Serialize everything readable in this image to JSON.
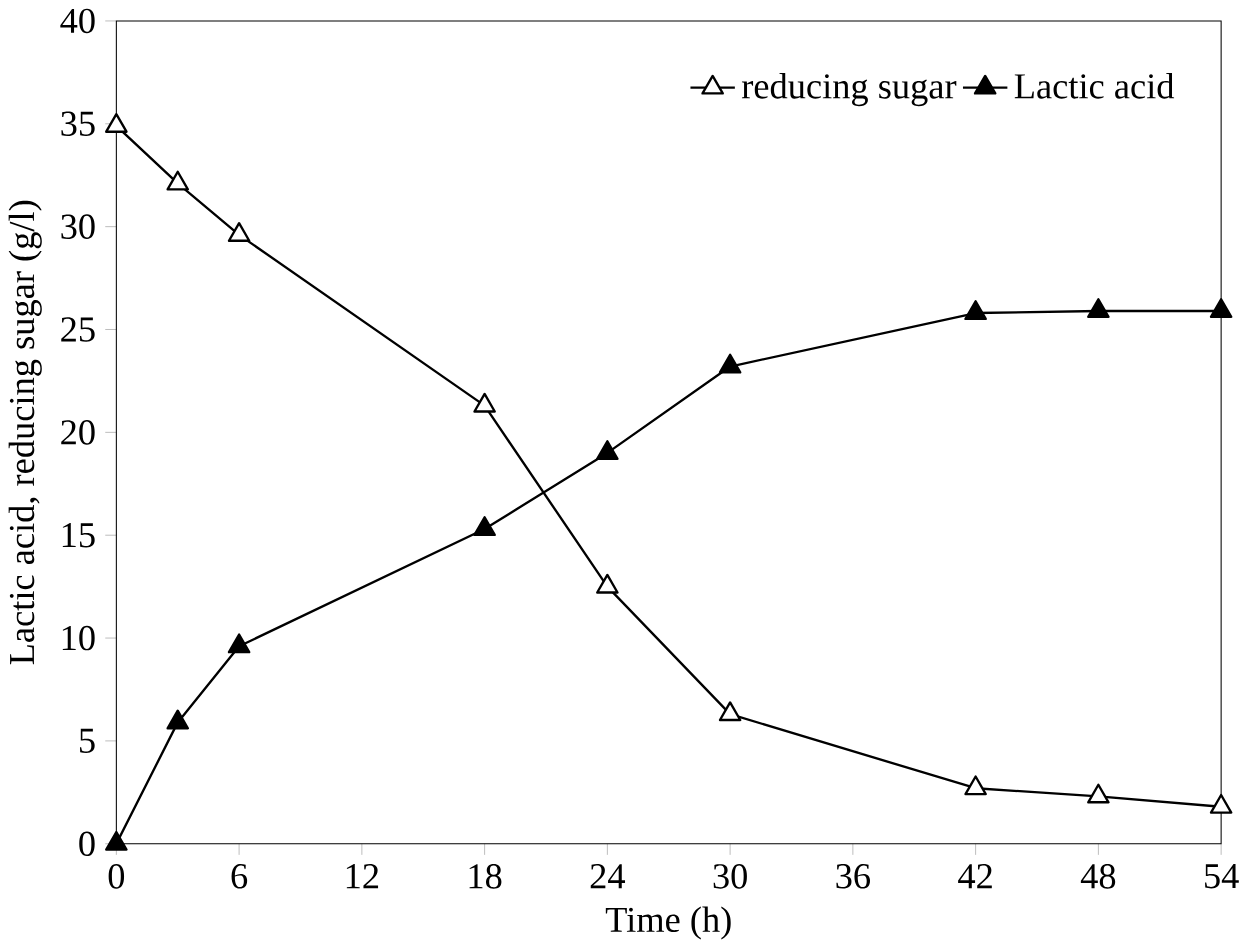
{
  "chart_data": {
    "type": "line",
    "xlabel": "Time (h)",
    "ylabel": "Lactic acid, reducing sugar (g/l)",
    "x": [
      0,
      3,
      6,
      18,
      24,
      30,
      42,
      48,
      54
    ],
    "series": [
      {
        "name": "reducing sugar",
        "color": "#ffffff",
        "values": [
          34.9,
          32.1,
          29.6,
          21.3,
          12.5,
          6.3,
          2.7,
          2.3,
          1.8
        ]
      },
      {
        "name": "Lactic acid",
        "color": "#000000",
        "values": [
          0,
          5.9,
          9.6,
          15.3,
          19.0,
          23.2,
          25.8,
          25.9,
          25.9
        ]
      }
    ],
    "xlim": [
      0,
      54
    ],
    "xticks": [
      0,
      6,
      12,
      18,
      24,
      30,
      36,
      42,
      48,
      54
    ],
    "ylim": [
      0,
      40
    ],
    "yticks": [
      0,
      5,
      10,
      15,
      20,
      25,
      30,
      35,
      40
    ],
    "grid": false,
    "legend": "top right",
    "marker": "triangle",
    "line_style": "solid"
  }
}
